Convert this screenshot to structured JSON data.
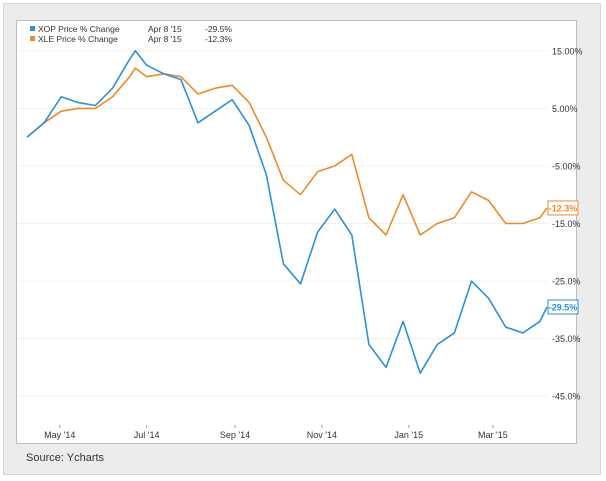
{
  "source": "Source: Ycharts",
  "chart_data": {
    "type": "line",
    "legend": [
      {
        "name": "XOP Price % Change",
        "date": "Apr 8 '15",
        "value": "-29.5%",
        "color": "#2f8fd8"
      },
      {
        "name": "XLE Price % Change",
        "date": "Apr 8 '15",
        "value": "-12.3%",
        "color": "#ee8a2a"
      }
    ],
    "legend_placement": "top-left",
    "x_tick_labels": [
      "May '14",
      "Jul '14",
      "Sep '14",
      "Nov '14",
      "Jan '15",
      "Mar '15"
    ],
    "y_tick_labels": [
      "15.00%",
      "5.00%",
      "-5.00%",
      "-15.0%",
      "-25.0%",
      "-35.0%",
      "-45.0%"
    ],
    "y_ticks": [
      15,
      5,
      -5,
      -15,
      -25,
      -35,
      -45
    ],
    "ylim": [
      -50,
      20
    ],
    "grid": "horizontal",
    "end_labels": [
      {
        "series": "XOP Price % Change",
        "text": "-29.5%",
        "value": -29.5,
        "color": "#2f8fd8"
      },
      {
        "series": "XLE Price % Change",
        "text": "-12.3%",
        "value": -12.3,
        "color": "#ee8a2a"
      }
    ],
    "series": [
      {
        "name": "XOP Price % Change",
        "color": "#2f8fd8",
        "x": [
          "Apr 8 '14",
          "Apr 20 '14",
          "May 2 '14",
          "May 14 '14",
          "May 26 '14",
          "Jun 7 '14",
          "Jun 19 '14",
          "Jun 23 '14",
          "Jul 1 '14",
          "Jul 13 '14",
          "Jul 25 '14",
          "Aug 6 '14",
          "Aug 18 '14",
          "Aug 30 '14",
          "Sep 11 '14",
          "Sep 23 '14",
          "Oct 5 '14",
          "Oct 17 '14",
          "Oct 29 '14",
          "Nov 10 '14",
          "Nov 22 '14",
          "Dec 4 '14",
          "Dec 16 '14",
          "Dec 28 '14",
          "Jan 9 '15",
          "Jan 21 '15",
          "Feb 2 '15",
          "Feb 14 '15",
          "Feb 26 '15",
          "Mar 10 '15",
          "Mar 22 '15",
          "Apr 3 '15",
          "Apr 8 '15"
        ],
        "values": [
          0,
          2.5,
          7,
          6,
          5.5,
          8.5,
          13.5,
          15,
          12.5,
          11,
          10,
          2.5,
          4.5,
          6.5,
          2,
          -6.5,
          -22,
          -25.5,
          -16.5,
          -12.5,
          -17,
          -36,
          -40,
          -32,
          -41,
          -36,
          -34,
          -25,
          -28,
          -33,
          -34,
          -32,
          -29.5
        ]
      },
      {
        "name": "XLE Price % Change",
        "color": "#ee8a2a",
        "x": [
          "Apr 8 '14",
          "Apr 20 '14",
          "May 2 '14",
          "May 14 '14",
          "May 26 '14",
          "Jun 7 '14",
          "Jun 19 '14",
          "Jun 23 '14",
          "Jul 1 '14",
          "Jul 13 '14",
          "Jul 25 '14",
          "Aug 6 '14",
          "Aug 18 '14",
          "Aug 30 '14",
          "Sep 11 '14",
          "Sep 23 '14",
          "Oct 5 '14",
          "Oct 17 '14",
          "Oct 29 '14",
          "Nov 10 '14",
          "Nov 22 '14",
          "Dec 4 '14",
          "Dec 16 '14",
          "Dec 28 '14",
          "Jan 9 '15",
          "Jan 21 '15",
          "Feb 2 '15",
          "Feb 14 '15",
          "Feb 26 '15",
          "Mar 10 '15",
          "Mar 22 '15",
          "Apr 3 '15",
          "Apr 8 '15"
        ],
        "values": [
          0,
          2.5,
          4.5,
          5,
          5,
          7,
          10.5,
          12,
          10.5,
          11,
          10.5,
          7.5,
          8.5,
          9,
          6,
          0,
          -7.5,
          -10,
          -6,
          -5,
          -3,
          -14,
          -17,
          -10,
          -17,
          -15,
          -14,
          -9.5,
          -11,
          -15,
          -15,
          -14,
          -12.3
        ]
      }
    ]
  }
}
